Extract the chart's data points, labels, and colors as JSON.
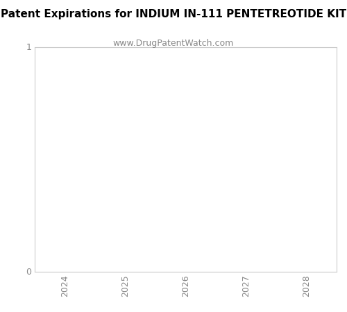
{
  "title": "Patent Expirations for INDIUM IN-111 PENTETREOTIDE KIT",
  "subtitle": "www.DrugPatentWatch.com",
  "title_fontsize": 11,
  "subtitle_fontsize": 9,
  "title_fontweight": "bold",
  "xlim": [
    2023.5,
    2028.5
  ],
  "ylim": [
    0,
    1
  ],
  "xticks": [
    2024,
    2025,
    2026,
    2027,
    2028
  ],
  "yticks": [
    0,
    1
  ],
  "background_color": "#ffffff",
  "plot_bg_color": "#ffffff",
  "grid_color": "#e0e0e0",
  "spine_color": "#cccccc",
  "tick_label_color": "#888888",
  "title_color": "#000000",
  "subtitle_color": "#888888",
  "figsize": [
    5.0,
    4.5
  ],
  "dpi": 100
}
